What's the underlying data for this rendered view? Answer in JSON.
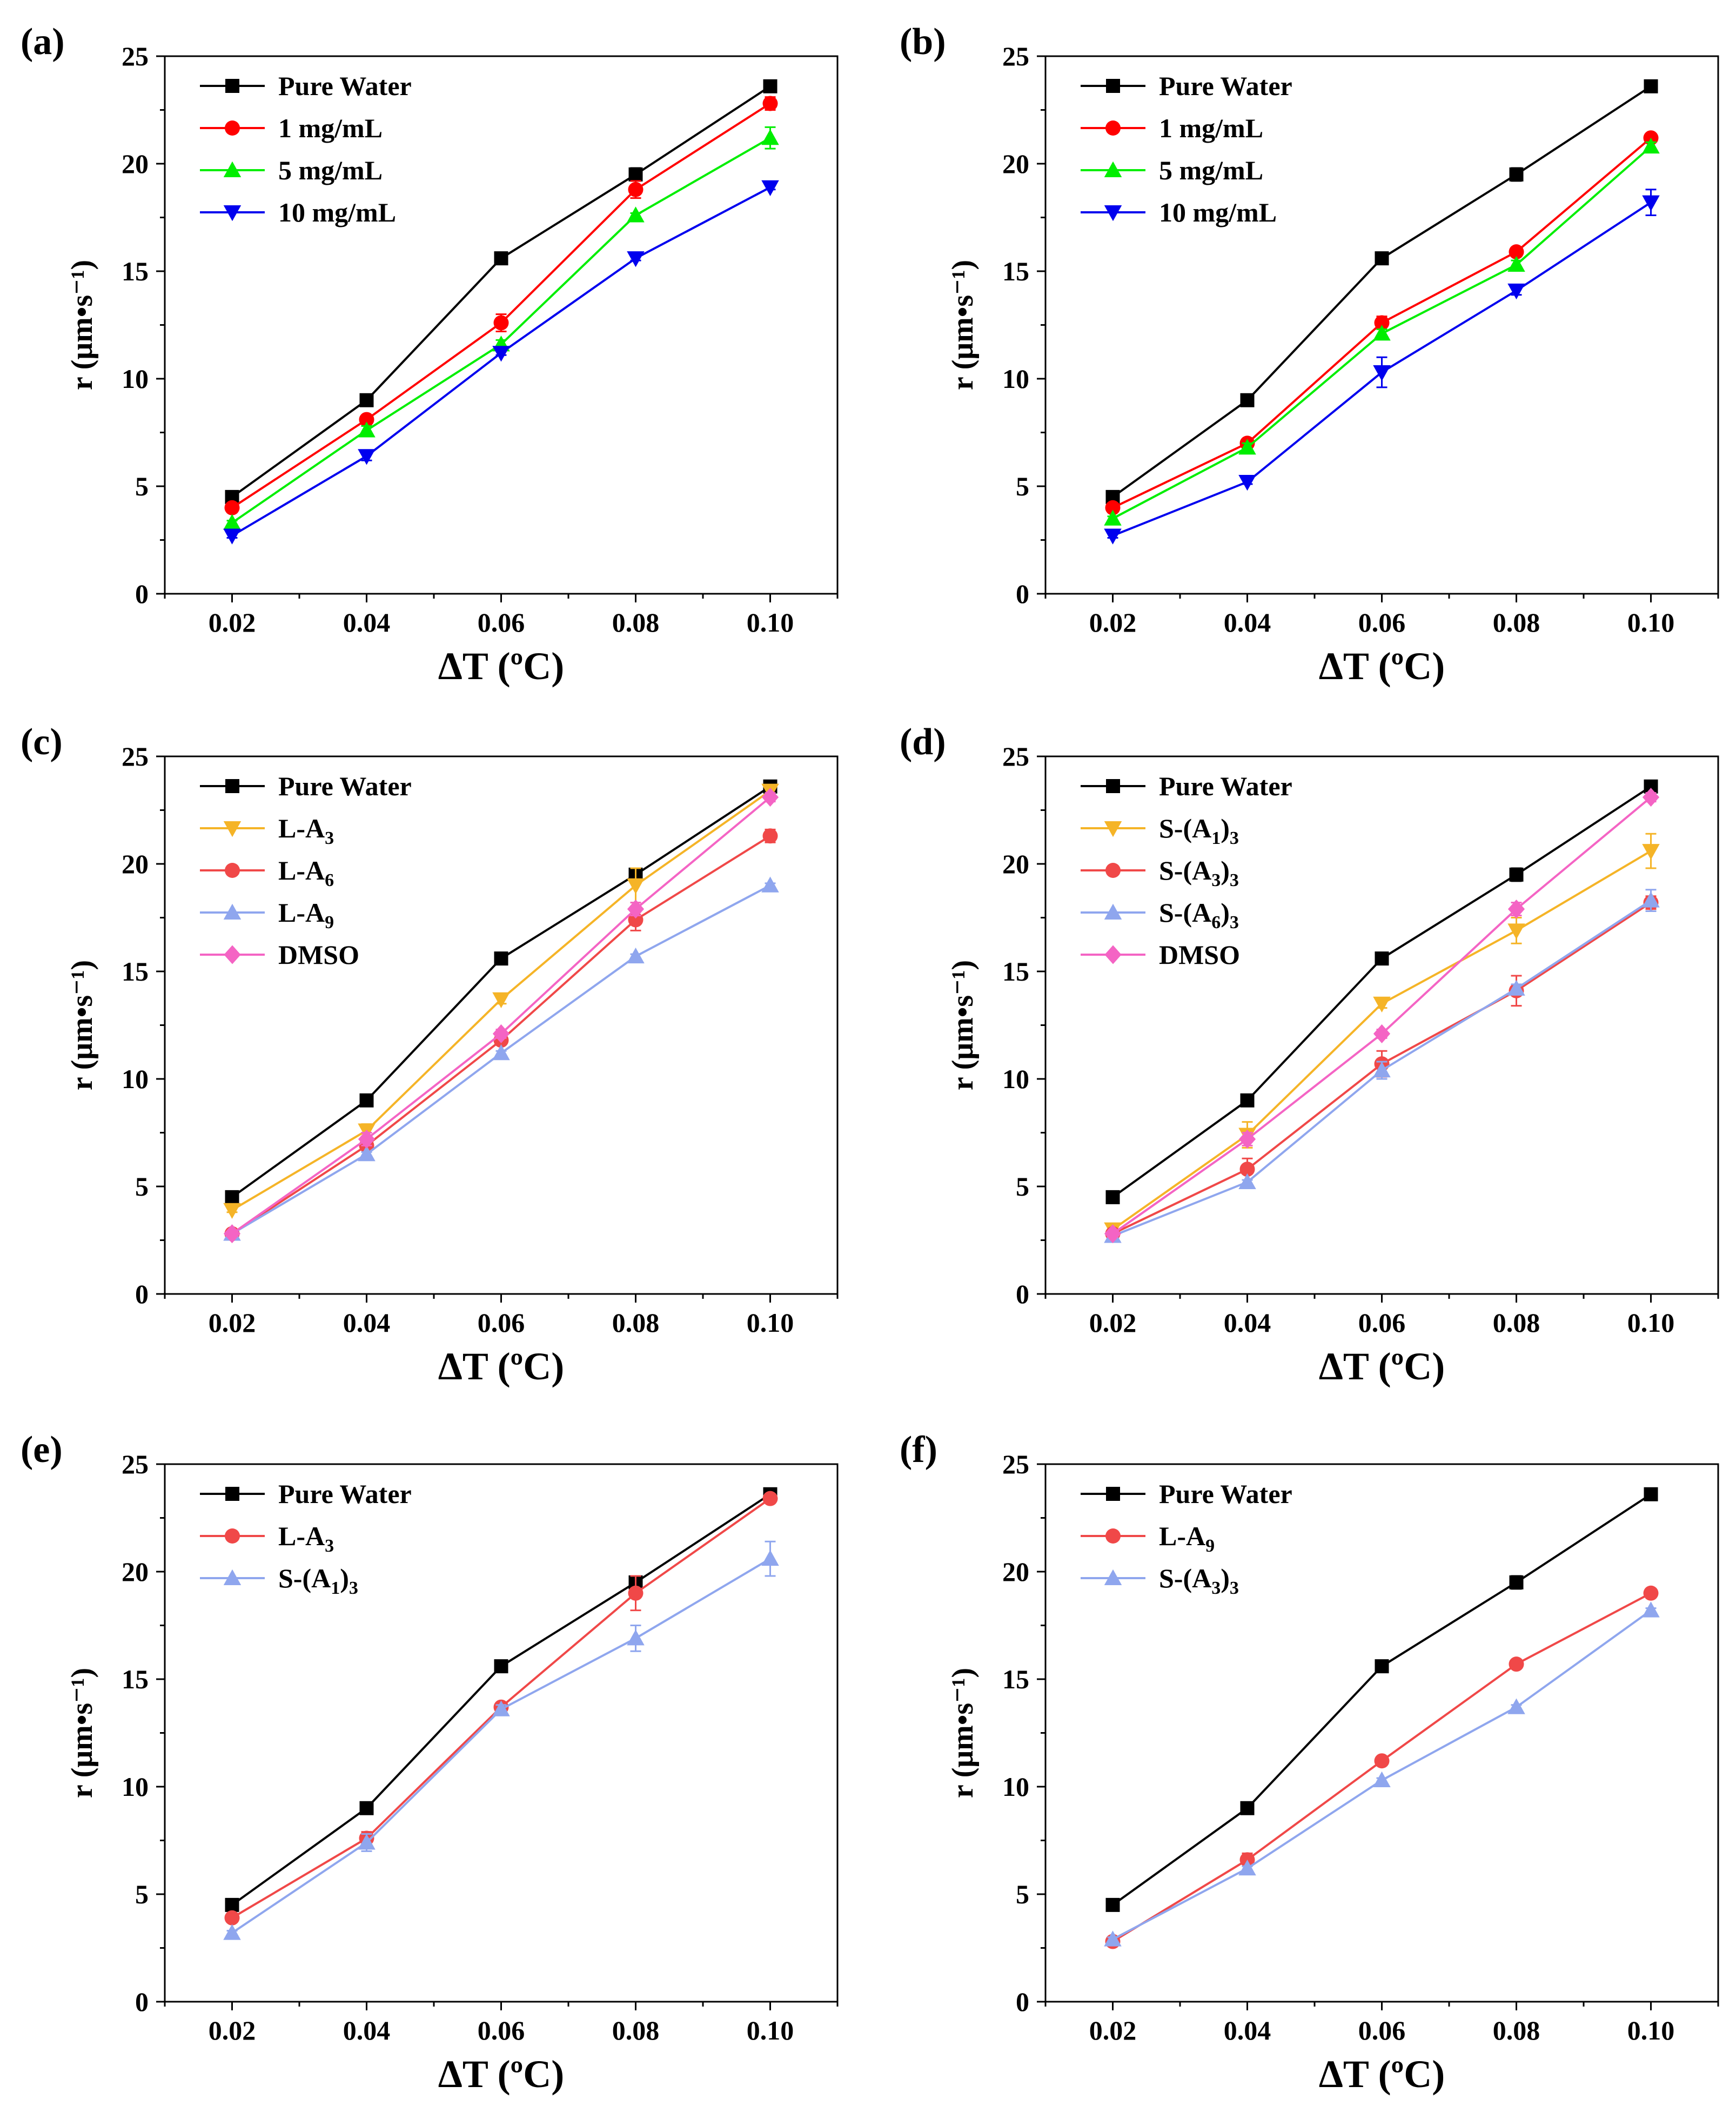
{
  "chart_data": [
    {
      "panel": "(a)",
      "type": "line",
      "x": [
        0.02,
        0.04,
        0.06,
        0.08,
        0.1
      ],
      "xticks": [
        "0.02",
        "0.04",
        "0.06",
        "0.08",
        "0.10"
      ],
      "xlabel": "ΔT (ºC)",
      "ylabel": "r (μm•s⁻¹)",
      "ylim": [
        0,
        25
      ],
      "yticks": [
        "0",
        "5",
        "10",
        "15",
        "20",
        "25"
      ],
      "series": [
        {
          "name": "Pure Water",
          "color": "#000000",
          "marker": "square",
          "values": [
            4.5,
            9.0,
            15.6,
            19.5,
            23.6
          ],
          "errors": [
            0.1,
            0.1,
            0.1,
            0.3,
            0.1
          ]
        },
        {
          "name": "1 mg/mL",
          "color": "#ff0000",
          "marker": "circle",
          "values": [
            4.0,
            8.1,
            12.6,
            18.8,
            22.8
          ],
          "errors": [
            0.1,
            0.2,
            0.4,
            0.4,
            0.3
          ]
        },
        {
          "name": "5 mg/mL",
          "color": "#00ee00",
          "marker": "triangle-up",
          "values": [
            3.3,
            7.6,
            11.6,
            17.6,
            21.2
          ],
          "errors": [
            0.1,
            0.2,
            0.2,
            0.1,
            0.5
          ]
        },
        {
          "name": "10 mg/mL",
          "color": "#0000ee",
          "marker": "triangle-down",
          "values": [
            2.7,
            6.4,
            11.2,
            15.6,
            18.9
          ],
          "errors": [
            0.1,
            0.2,
            0.1,
            0.1,
            0.1
          ]
        }
      ]
    },
    {
      "panel": "(b)",
      "type": "line",
      "x": [
        0.02,
        0.04,
        0.06,
        0.08,
        0.1
      ],
      "xticks": [
        "0.02",
        "0.04",
        "0.06",
        "0.08",
        "0.10"
      ],
      "xlabel": "ΔT (ºC)",
      "ylabel": "r (μm•s⁻¹)",
      "ylim": [
        0,
        25
      ],
      "yticks": [
        "0",
        "5",
        "10",
        "15",
        "20",
        "25"
      ],
      "series": [
        {
          "name": "Pure Water",
          "color": "#000000",
          "marker": "square",
          "values": [
            4.5,
            9.0,
            15.6,
            19.5,
            23.6
          ],
          "errors": [
            0.1,
            0.1,
            0.1,
            0.3,
            0.1
          ]
        },
        {
          "name": "1 mg/mL",
          "color": "#ff0000",
          "marker": "circle",
          "values": [
            4.0,
            7.0,
            12.6,
            15.9,
            21.2
          ],
          "errors": [
            0.1,
            0.2,
            0.3,
            0.2,
            0.2
          ]
        },
        {
          "name": "5 mg/mL",
          "color": "#00ee00",
          "marker": "triangle-up",
          "values": [
            3.5,
            6.8,
            12.1,
            15.3,
            20.8
          ],
          "errors": [
            0.1,
            0.2,
            0.2,
            0.2,
            0.2
          ]
        },
        {
          "name": "10 mg/mL",
          "color": "#0000ee",
          "marker": "triangle-down",
          "values": [
            2.7,
            5.2,
            10.3,
            14.1,
            18.2
          ],
          "errors": [
            0.1,
            0.1,
            0.7,
            0.2,
            0.6
          ]
        }
      ]
    },
    {
      "panel": "(c)",
      "type": "line",
      "x": [
        0.02,
        0.04,
        0.06,
        0.08,
        0.1
      ],
      "xticks": [
        "0.02",
        "0.04",
        "0.06",
        "0.08",
        "0.10"
      ],
      "xlabel": "ΔT (ºC)",
      "ylabel": "r (μm•s⁻¹)",
      "ylim": [
        0,
        25
      ],
      "yticks": [
        "0",
        "5",
        "10",
        "15",
        "20",
        "25"
      ],
      "series": [
        {
          "name": "Pure Water",
          "color": "#000000",
          "marker": "square",
          "values": [
            4.5,
            9.0,
            15.6,
            19.5,
            23.6
          ],
          "errors": [
            0.1,
            0.1,
            0.1,
            0.3,
            0.1
          ]
        },
        {
          "name": "L-A3",
          "base": "L-A",
          "sub": "3",
          "color": "#f5b427",
          "marker": "triangle-down",
          "values": [
            3.9,
            7.6,
            13.7,
            19.0,
            23.4
          ],
          "errors": [
            0.1,
            0.3,
            0.2,
            0.8,
            0.2
          ]
        },
        {
          "name": "L-A6",
          "base": "L-A",
          "sub": "6",
          "color": "#f04848",
          "marker": "circle",
          "values": [
            2.8,
            6.9,
            11.8,
            17.4,
            21.3
          ],
          "errors": [
            0.1,
            0.2,
            0.2,
            0.5,
            0.3
          ]
        },
        {
          "name": "L-A9",
          "base": "L-A",
          "sub": "9",
          "color": "#8fa6ee",
          "marker": "triangle-up",
          "values": [
            2.8,
            6.5,
            11.2,
            15.7,
            19.0
          ],
          "errors": [
            0.1,
            0.1,
            0.1,
            0.1,
            0.1
          ]
        },
        {
          "name": "DMSO",
          "color": "#f464c4",
          "marker": "diamond",
          "values": [
            2.8,
            7.2,
            12.1,
            17.9,
            23.1
          ],
          "errors": [
            0.1,
            0.3,
            0.2,
            0.3,
            0.2
          ]
        }
      ]
    },
    {
      "panel": "(d)",
      "type": "line",
      "x": [
        0.02,
        0.04,
        0.06,
        0.08,
        0.1
      ],
      "xticks": [
        "0.02",
        "0.04",
        "0.06",
        "0.08",
        "0.10"
      ],
      "xlabel": "ΔT (ºC)",
      "ylabel": "r (μm•s⁻¹)",
      "ylim": [
        0,
        25
      ],
      "yticks": [
        "0",
        "5",
        "10",
        "15",
        "20",
        "25"
      ],
      "series": [
        {
          "name": "Pure Water",
          "color": "#000000",
          "marker": "square",
          "values": [
            4.5,
            9.0,
            15.6,
            19.5,
            23.6
          ],
          "errors": [
            0.1,
            0.1,
            0.1,
            0.3,
            0.1
          ]
        },
        {
          "name": "S-(A1)3",
          "base": "S-(A",
          "sub": "1",
          "mid": ")",
          "sub2": "3",
          "color": "#f5b427",
          "marker": "triangle-down",
          "values": [
            3.0,
            7.4,
            13.5,
            16.9,
            20.6
          ],
          "errors": [
            0.2,
            0.6,
            0.2,
            0.6,
            0.8
          ]
        },
        {
          "name": "S-(A3)3",
          "base": "S-(A",
          "sub": "3",
          "mid": ")",
          "sub2": "3",
          "color": "#f04848",
          "marker": "circle",
          "values": [
            2.8,
            5.8,
            10.7,
            14.1,
            18.2
          ],
          "errors": [
            0.2,
            0.5,
            0.6,
            0.7,
            0.3
          ]
        },
        {
          "name": "S-(A6)3",
          "base": "S-(A",
          "sub": "6",
          "mid": ")",
          "sub2": "3",
          "color": "#8fa6ee",
          "marker": "triangle-up",
          "values": [
            2.7,
            5.2,
            10.4,
            14.2,
            18.3
          ],
          "errors": [
            0.1,
            0.1,
            0.4,
            0.2,
            0.5
          ]
        },
        {
          "name": "DMSO",
          "color": "#f464c4",
          "marker": "diamond",
          "values": [
            2.8,
            7.2,
            12.1,
            17.9,
            23.1
          ],
          "errors": [
            0.1,
            0.3,
            0.2,
            0.3,
            0.2
          ]
        }
      ]
    },
    {
      "panel": "(e)",
      "type": "line",
      "x": [
        0.02,
        0.04,
        0.06,
        0.08,
        0.1
      ],
      "xticks": [
        "0.02",
        "0.04",
        "0.06",
        "0.08",
        "0.10"
      ],
      "xlabel": "ΔT (ºC)",
      "ylabel": "r (μm•s⁻¹)",
      "ylim": [
        0,
        25
      ],
      "yticks": [
        "0",
        "5",
        "10",
        "15",
        "20",
        "25"
      ],
      "series": [
        {
          "name": "Pure Water",
          "color": "#000000",
          "marker": "square",
          "values": [
            4.5,
            9.0,
            15.6,
            19.5,
            23.6
          ],
          "errors": [
            0.1,
            0.1,
            0.1,
            0.3,
            0.1
          ]
        },
        {
          "name": "L-A3",
          "base": "L-A",
          "sub": "3",
          "color": "#f04848",
          "marker": "circle",
          "values": [
            3.9,
            7.6,
            13.7,
            19.0,
            23.4
          ],
          "errors": [
            0.1,
            0.3,
            0.2,
            0.8,
            0.2
          ]
        },
        {
          "name": "S-(A1)3",
          "base": "S-(A",
          "sub": "1",
          "mid": ")",
          "sub2": "3",
          "color": "#8fa6ee",
          "marker": "triangle-up",
          "values": [
            3.2,
            7.4,
            13.6,
            16.9,
            20.6
          ],
          "errors": [
            0.1,
            0.4,
            0.2,
            0.6,
            0.8
          ]
        }
      ]
    },
    {
      "panel": "(f)",
      "type": "line",
      "x": [
        0.02,
        0.04,
        0.06,
        0.08,
        0.1
      ],
      "xticks": [
        "0.02",
        "0.04",
        "0.06",
        "0.08",
        "0.10"
      ],
      "xlabel": "ΔT (ºC)",
      "ylabel": "r (μm•s⁻¹)",
      "ylim": [
        0,
        25
      ],
      "yticks": [
        "0",
        "5",
        "10",
        "15",
        "20",
        "25"
      ],
      "series": [
        {
          "name": "Pure Water",
          "color": "#000000",
          "marker": "square",
          "values": [
            4.5,
            9.0,
            15.6,
            19.5,
            23.6
          ],
          "errors": [
            0.1,
            0.1,
            0.1,
            0.3,
            0.1
          ]
        },
        {
          "name": "L-A9",
          "base": "L-A",
          "sub": "9",
          "color": "#f04848",
          "marker": "circle",
          "values": [
            2.8,
            6.6,
            11.2,
            15.7,
            19.0
          ],
          "errors": [
            0.1,
            0.3,
            0.1,
            0.1,
            0.1
          ]
        },
        {
          "name": "S-(A3)3",
          "base": "S-(A",
          "sub": "3",
          "mid": ")",
          "sub2": "3",
          "color": "#8fa6ee",
          "marker": "triangle-up",
          "values": [
            2.9,
            6.2,
            10.3,
            13.7,
            18.2
          ],
          "errors": [
            0.1,
            0.1,
            0.1,
            0.1,
            0.1
          ]
        }
      ]
    }
  ]
}
